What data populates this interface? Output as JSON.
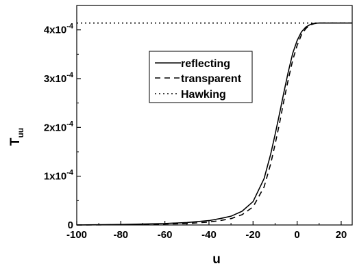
{
  "chart_data": {
    "type": "line",
    "xlabel": "u",
    "ylabel_main": "T",
    "ylabel_sub": "uu",
    "xlim": [
      -100,
      25
    ],
    "ylim": [
      0,
      0.00045
    ],
    "x_ticks": [
      {
        "value": -100,
        "label": "-100"
      },
      {
        "value": -80,
        "label": "-80"
      },
      {
        "value": -60,
        "label": "-60"
      },
      {
        "value": -40,
        "label": "-40"
      },
      {
        "value": -20,
        "label": "-20"
      },
      {
        "value": 0,
        "label": "0"
      },
      {
        "value": 20,
        "label": "20"
      }
    ],
    "y_ticks": [
      {
        "value": 0,
        "mantissa": "0",
        "exponent": ""
      },
      {
        "value": 0.0001,
        "mantissa": "1x10",
        "exponent": "-4"
      },
      {
        "value": 0.0002,
        "mantissa": "2x10",
        "exponent": "-4"
      },
      {
        "value": 0.0003,
        "mantissa": "3x10",
        "exponent": "-4"
      },
      {
        "value": 0.0004,
        "mantissa": "4x10",
        "exponent": "-4"
      }
    ],
    "legend_position": "upper-center",
    "series": [
      {
        "name": "reflecting",
        "style": "solid",
        "x": [
          -100,
          -80,
          -60,
          -50,
          -40,
          -35,
          -30,
          -25,
          -20,
          -15,
          -12,
          -10,
          -8,
          -6,
          -4,
          -2,
          0,
          2,
          4,
          6,
          8,
          10,
          12,
          15,
          20,
          25
        ],
        "y": [
          0.0,
          1e-06,
          3e-06,
          5e-06,
          9e-06,
          1.3e-05,
          1.8e-05,
          2.8e-05,
          4.8e-05,
          9.5e-05,
          0.000145,
          0.000185,
          0.000228,
          0.000272,
          0.000314,
          0.000352,
          0.000378,
          0.000396,
          0.000406,
          0.000411,
          0.0004135,
          0.000414,
          0.000414,
          0.000414,
          0.000414,
          0.000414
        ]
      },
      {
        "name": "transparent",
        "style": "dashed",
        "x": [
          -100,
          -80,
          -60,
          -50,
          -40,
          -35,
          -30,
          -25,
          -20,
          -15,
          -12,
          -10,
          -8,
          -6,
          -4,
          -2,
          0,
          2,
          4,
          6,
          8,
          10,
          12,
          15,
          20,
          25
        ],
        "y": [
          0.0,
          5e-07,
          2e-06,
          3e-06,
          6e-06,
          9e-06,
          1.3e-05,
          2.1e-05,
          3.7e-05,
          7.8e-05,
          0.000125,
          0.000165,
          0.000208,
          0.000255,
          0.000298,
          0.000338,
          0.000368,
          0.00039,
          0.000403,
          0.00041,
          0.000413,
          0.000414,
          0.000414,
          0.000414,
          0.000414,
          0.000414
        ]
      },
      {
        "name": "Hawking",
        "style": "dotted",
        "x": [
          -100,
          25
        ],
        "y": [
          0.000414,
          0.000414
        ]
      }
    ]
  }
}
